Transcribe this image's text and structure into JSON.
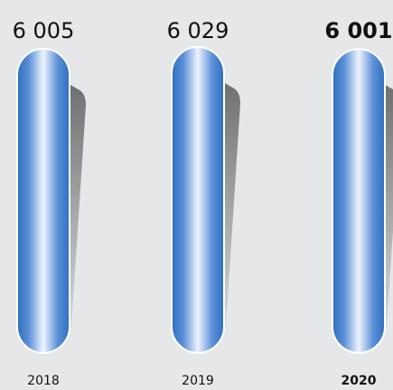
{
  "chart_data": {
    "type": "bar",
    "categories": [
      "2018",
      "2019",
      "2020"
    ],
    "values": [
      6005,
      6029,
      6001
    ],
    "value_labels": [
      "6 005",
      "6 029",
      "6 001"
    ],
    "highlight_index": 2,
    "title": "",
    "xlabel": "",
    "ylabel": "",
    "grid": false,
    "legend": "none",
    "colors": {
      "bar_edge": "#2f6fc0",
      "bar_light": "#e8f0ff",
      "bar_mid": "#8fb2e8",
      "shadow_dark": "#6f6f6f",
      "shadow_light": "#d0d0d0",
      "background": "#e6e7e9"
    }
  }
}
